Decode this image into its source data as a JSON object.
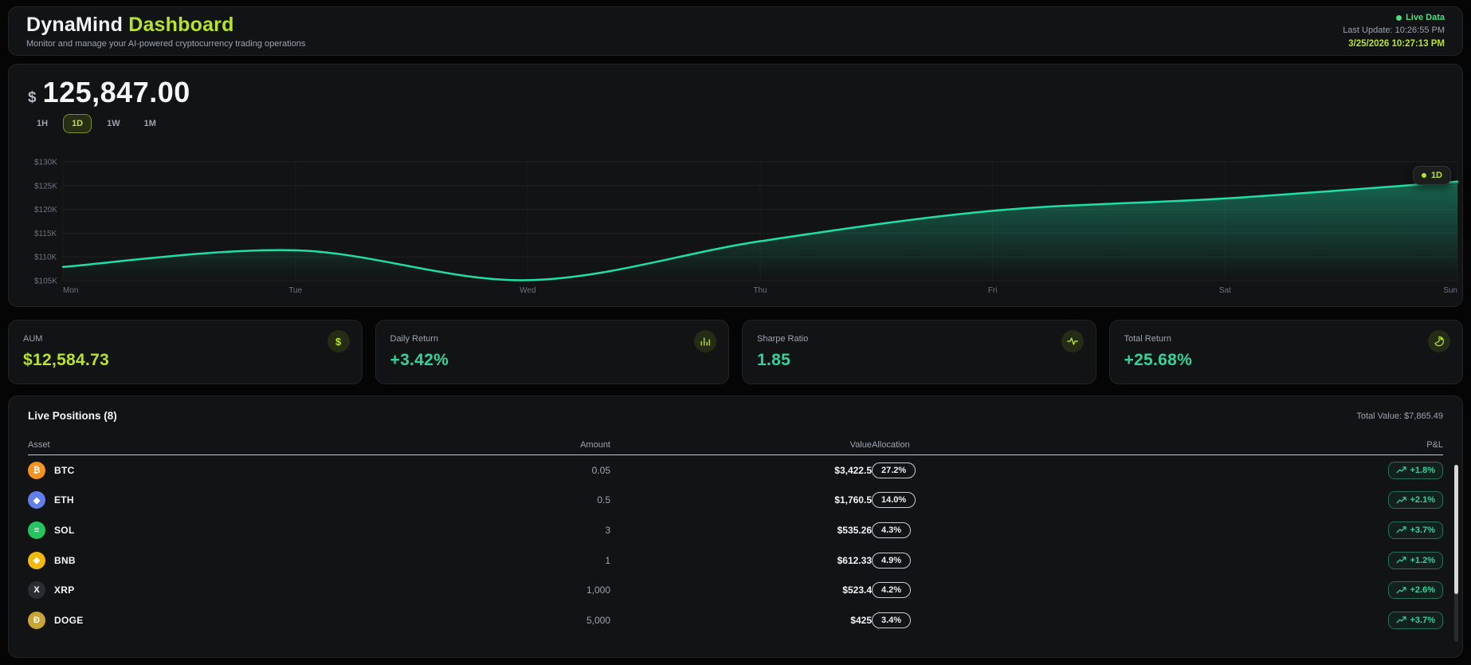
{
  "colors": {
    "lime": "#b8e427",
    "emerald": "#34d399",
    "live": "#4ade80",
    "chart_line": "#1fdfa6"
  },
  "header": {
    "brand_primary": "DynaMind",
    "brand_accent": "Dashboard",
    "subtitle": "Monitor and manage your AI-powered cryptocurrency trading operations",
    "live_badge": "Live Data",
    "last_update": "Last Update: 10:26:55 PM",
    "datetime": "3/25/2026 10:27:13 PM"
  },
  "portfolio": {
    "currency_symbol": "$",
    "value": "125,847.00",
    "ranges": [
      {
        "label": "1H",
        "active": false
      },
      {
        "label": "1D",
        "active": true
      },
      {
        "label": "1W",
        "active": false
      },
      {
        "label": "1M",
        "active": false
      }
    ],
    "chart_badge": "1D"
  },
  "chart_data": {
    "type": "area",
    "title": "Portfolio value over the week (thousands USD)",
    "x": [
      "Mon",
      "Tue",
      "Wed",
      "Thu",
      "Fri",
      "Sat",
      "Sun"
    ],
    "values": [
      107.9,
      111.4,
      105.1,
      113.3,
      119.7,
      122.3,
      125.85
    ],
    "ylim": [
      105,
      130
    ],
    "yticks": [
      105,
      110,
      115,
      120,
      125,
      130
    ],
    "ytick_labels": [
      "$105K",
      "$110K",
      "$115K",
      "$120K",
      "$125K",
      "$130K"
    ],
    "grid": true,
    "legend_badge": "1D",
    "line_color": "#1fdfa6"
  },
  "stats": [
    {
      "label": "AUM",
      "value": "$12,584.73",
      "color": "lime",
      "icon": "dollar-icon"
    },
    {
      "label": "Daily Return",
      "value": "+3.42%",
      "color": "emerald",
      "icon": "bar-chart-icon"
    },
    {
      "label": "Sharpe Ratio",
      "value": "1.85",
      "color": "emerald",
      "icon": "activity-icon"
    },
    {
      "label": "Total Return",
      "value": "+25.68%",
      "color": "emerald",
      "icon": "pie-chart-icon"
    }
  ],
  "positions": {
    "title": "Live Positions (8)",
    "total_value": "Total Value: $7,865.49",
    "columns": [
      "Asset",
      "Amount",
      "Value",
      "Allocation",
      "P&L"
    ],
    "rows": [
      {
        "symbol": "BTC",
        "icon_bg": "#f7931a",
        "glyph": "₿",
        "amount": "0.05",
        "value": "$3,422.5",
        "allocation": "27.2%",
        "pnl": "+1.8%"
      },
      {
        "symbol": "ETH",
        "icon_bg": "#627eea",
        "glyph": "◆",
        "amount": "0.5",
        "value": "$1,760.5",
        "allocation": "14.0%",
        "pnl": "+2.1%"
      },
      {
        "symbol": "SOL",
        "icon_bg": "#22c55e",
        "glyph": "≡",
        "amount": "3",
        "value": "$535.26",
        "allocation": "4.3%",
        "pnl": "+3.7%"
      },
      {
        "symbol": "BNB",
        "icon_bg": "#f0b90b",
        "glyph": "◈",
        "amount": "1",
        "value": "$612.33",
        "allocation": "4.9%",
        "pnl": "+1.2%"
      },
      {
        "symbol": "XRP",
        "icon_bg": "#2a2e33",
        "glyph": "X",
        "amount": "1,000",
        "value": "$523.4",
        "allocation": "4.2%",
        "pnl": "+2.6%"
      },
      {
        "symbol": "DOGE",
        "icon_bg": "#c9a633",
        "glyph": "Ð",
        "amount": "5,000",
        "value": "$425",
        "allocation": "3.4%",
        "pnl": "+3.7%"
      }
    ]
  }
}
